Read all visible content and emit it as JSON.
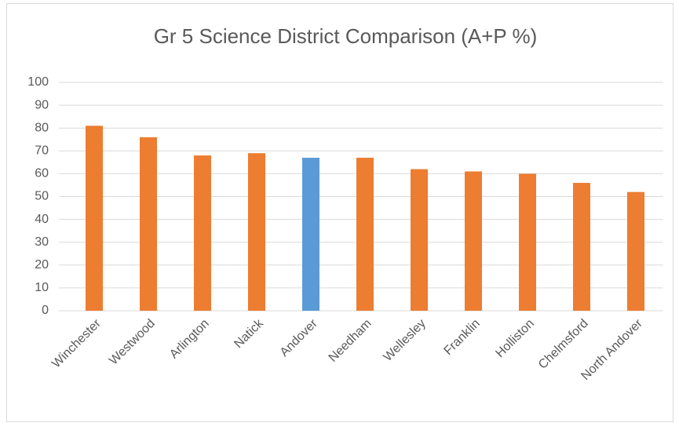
{
  "chart_data": {
    "type": "bar",
    "title": "Gr 5 Science District Comparison (A+P %)",
    "categories": [
      "Winchester",
      "Westwood",
      "Arlington",
      "Natick",
      "Andover",
      "Needham",
      "Wellesley",
      "Franklin",
      "Holliston",
      "Chelmsford",
      "North Andover"
    ],
    "values": [
      81,
      76,
      68,
      69,
      67,
      67,
      62,
      61,
      60,
      56,
      52
    ],
    "colors": [
      "#ed7d31",
      "#ed7d31",
      "#ed7d31",
      "#ed7d31",
      "#5b9bd5",
      "#ed7d31",
      "#ed7d31",
      "#ed7d31",
      "#ed7d31",
      "#ed7d31",
      "#ed7d31"
    ],
    "ylim": [
      0,
      100
    ],
    "yticks": [
      0,
      10,
      20,
      30,
      40,
      50,
      60,
      70,
      80,
      90,
      100
    ],
    "grid": true
  }
}
